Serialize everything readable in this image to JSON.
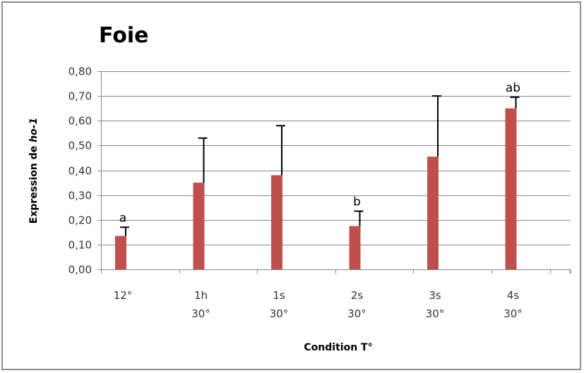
{
  "chart_data": {
    "type": "bar",
    "title": "Foie",
    "xlabel": "Condition T°",
    "ylabel_prefix": "Expression de ",
    "ylabel_gene": "ho-1",
    "categories": [
      [
        "12°"
      ],
      [
        "1h",
        "30°"
      ],
      [
        "1s",
        "30°"
      ],
      [
        "2s",
        "30°"
      ],
      [
        "3s",
        "30°"
      ],
      [
        "4s",
        "30°"
      ]
    ],
    "values": [
      0.135,
      0.35,
      0.38,
      0.175,
      0.455,
      0.65
    ],
    "errors": [
      0.035,
      0.18,
      0.2,
      0.06,
      0.245,
      0.045
    ],
    "annotations": [
      "a",
      "",
      "",
      "b",
      "",
      "ab"
    ],
    "ylim": [
      0,
      0.8
    ],
    "yticks": [
      "0,00",
      "0,10",
      "0,20",
      "0,30",
      "0,40",
      "0,50",
      "0,60",
      "0,70",
      "0,80"
    ],
    "grid": true,
    "legend": "none",
    "bar_color": "#c0504d",
    "grid_color": "#868686"
  }
}
